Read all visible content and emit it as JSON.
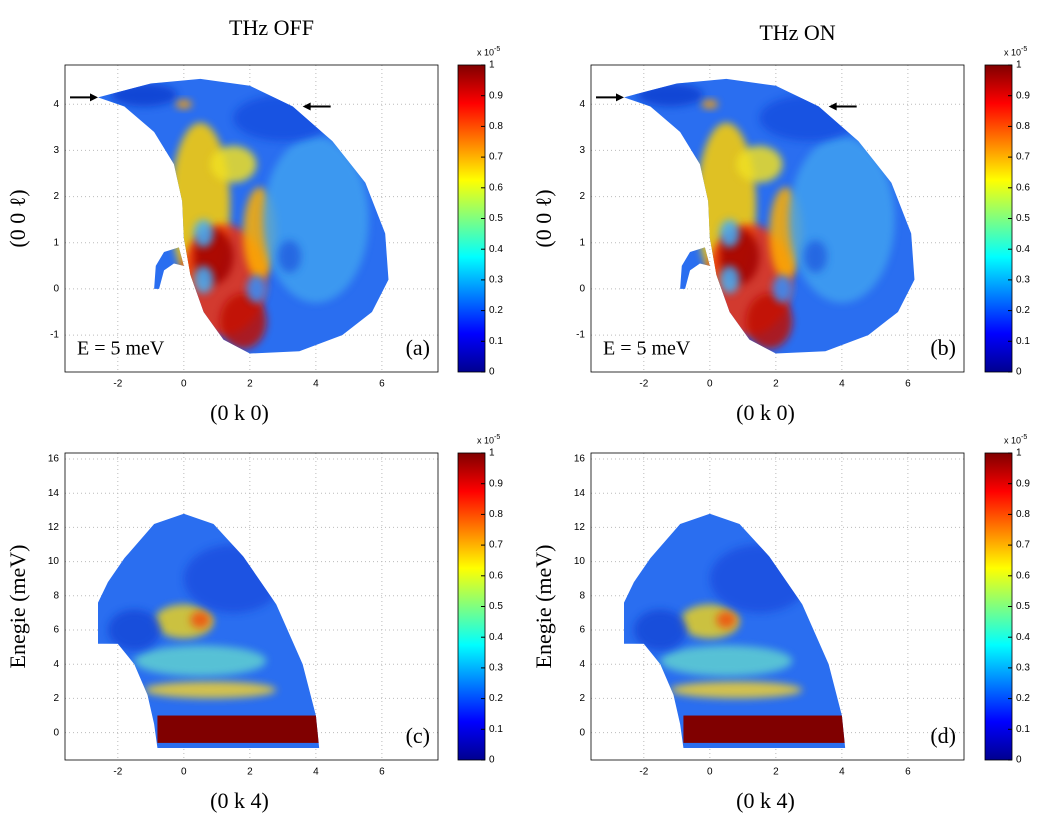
{
  "chart_data": [
    {
      "type": "heatmap",
      "title": "THz OFF",
      "xlabel": "(0 k 0)",
      "ylabel": "(0 0 ℓ)",
      "annotation": "E = 5 meV",
      "panel_label": "(a)",
      "xlim": [
        -3.6,
        7.7
      ],
      "ylim": [
        -1.8,
        4.85
      ],
      "xticks": [
        -2,
        0,
        2,
        4,
        6
      ],
      "yticks": [
        -1,
        0,
        1,
        2,
        3,
        4
      ],
      "grid": true,
      "colorbar": {
        "lim": [
          0,
          1
        ],
        "ticks": [
          0,
          0.1,
          0.2,
          0.3,
          0.4,
          0.5,
          0.6,
          0.7,
          0.8,
          0.9,
          1
        ],
        "unit": "x 10",
        "exponent": "-5"
      }
    },
    {
      "type": "heatmap",
      "title": "THz ON",
      "xlabel": "(0 k 0)",
      "ylabel": "(0 0 ℓ)",
      "annotation": "E = 5 meV",
      "panel_label": "(b)",
      "xlim": [
        -3.6,
        7.7
      ],
      "ylim": [
        -1.8,
        4.85
      ],
      "xticks": [
        -2,
        0,
        2,
        4,
        6
      ],
      "yticks": [
        -1,
        0,
        1,
        2,
        3,
        4
      ],
      "grid": true,
      "colorbar": {
        "lim": [
          0,
          1
        ],
        "ticks": [
          0,
          0.1,
          0.2,
          0.3,
          0.4,
          0.5,
          0.6,
          0.7,
          0.8,
          0.9,
          1
        ],
        "unit": "x 10",
        "exponent": "-5"
      }
    },
    {
      "type": "heatmap",
      "xlabel": "(0 k 4)",
      "ylabel": "Enegie (meV)",
      "panel_label": "(c)",
      "xlim": [
        -3.6,
        7.7
      ],
      "ylim": [
        -1.6,
        16.35
      ],
      "xticks": [
        -2,
        0,
        2,
        4,
        6
      ],
      "yticks": [
        0,
        2,
        4,
        6,
        8,
        10,
        12,
        14,
        16
      ],
      "grid": true,
      "colorbar": {
        "lim": [
          0,
          1
        ],
        "ticks": [
          0,
          0.1,
          0.2,
          0.3,
          0.4,
          0.5,
          0.6,
          0.7,
          0.8,
          0.9,
          1
        ],
        "unit": "x 10",
        "exponent": "-5"
      }
    },
    {
      "type": "heatmap",
      "xlabel": "(0 k 4)",
      "ylabel": "Enegie (meV)",
      "panel_label": "(d)",
      "xlim": [
        -3.6,
        7.7
      ],
      "ylim": [
        -1.6,
        16.35
      ],
      "xticks": [
        -2,
        0,
        2,
        4,
        6
      ],
      "yticks": [
        0,
        2,
        4,
        6,
        8,
        10,
        12,
        14,
        16
      ],
      "grid": true,
      "colorbar": {
        "lim": [
          0,
          1
        ],
        "ticks": [
          0,
          0.1,
          0.2,
          0.3,
          0.4,
          0.5,
          0.6,
          0.7,
          0.8,
          0.9,
          1
        ],
        "unit": "x 10",
        "exponent": "-5"
      }
    }
  ]
}
